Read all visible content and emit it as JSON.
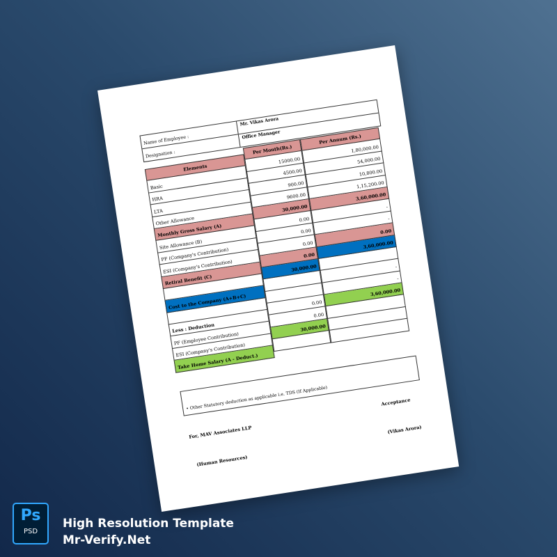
{
  "document": {
    "employee": {
      "name_label": "Name of Employee :",
      "name_value": "Mr. Vikas Arora",
      "designation_label": "Designation :",
      "designation_value": "Office Manager"
    },
    "table": {
      "headers": [
        "Elements",
        "Per Month(Rs.)",
        "Per Annum (Rs.)"
      ],
      "labels": [
        {
          "text": "Basic"
        },
        {
          "text": "HRA"
        },
        {
          "text": "LTA"
        },
        {
          "text": "Other Allowance"
        },
        {
          "text": "Monthly Gross Salary (A)",
          "style": "pink"
        },
        {
          "text": "Site Allowance (B)"
        },
        {
          "text": "PF (Company's Contribution)"
        },
        {
          "text": "ESI (Company's Contribution)"
        },
        {
          "text": "Retiral Benefit (C)",
          "style": "pink"
        },
        {
          "text": "",
          "style": ""
        },
        {
          "text": "Cost to the Company (A+B+C)",
          "style": "blue"
        },
        {
          "text": ""
        },
        {
          "text": "Less : Deduction",
          "style": "bold"
        },
        {
          "text": "PF (Employee Contribution)"
        },
        {
          "text": "ESI (Company's Contribution)"
        },
        {
          "text": "Take Home Salary  (A - Deduct.)",
          "style": "green"
        }
      ],
      "per_month": [
        {
          "text": "15000.00"
        },
        {
          "text": "4500.00"
        },
        {
          "text": "900.00"
        },
        {
          "text": "9600.00"
        },
        {
          "text": "30,000.00",
          "style": "pink"
        },
        {
          "text": "0.00"
        },
        {
          "text": "0.00"
        },
        {
          "text": "0.00"
        },
        {
          "text": "0.00",
          "style": "pink"
        },
        {
          "text": "30,000.00",
          "style": "blue"
        },
        {
          "text": ""
        },
        {
          "text": ""
        },
        {
          "text": "0.00"
        },
        {
          "text": "0.00"
        },
        {
          "text": "30,000.00",
          "style": "green"
        },
        {
          "text": ""
        }
      ],
      "per_annum": [
        {
          "text": "1,80,000.00"
        },
        {
          "text": "54,000.00"
        },
        {
          "text": "10,800.00"
        },
        {
          "text": "1,15,200.00"
        },
        {
          "text": "3,60,000.00",
          "style": "pink"
        },
        {
          "text": "-"
        },
        {
          "text": "-"
        },
        {
          "text": "0.00",
          "style": "pink"
        },
        {
          "text": "3,60,000.00",
          "style": "blue"
        },
        {
          "text": ""
        },
        {
          "text": "-"
        },
        {
          "text": "-"
        },
        {
          "text": "3,60,000.00",
          "style": "green"
        },
        {
          "text": ""
        },
        {
          "text": ""
        },
        {
          "text": ""
        }
      ]
    },
    "note": "• Other Statutory deduction as applicable i.e. TDS (If Applicable)",
    "acceptance": "Acceptance",
    "company": "For, MAV Associates LLP",
    "employee_sign": "(Vikas Arora)",
    "hr_sign": "(Human Resources)"
  },
  "colors": {
    "pink": "#d99694",
    "blue": "#0070c0",
    "green": "#92d050",
    "ps_accent": "#31a8ff"
  },
  "badge": {
    "icon": "photoshop-psd-icon",
    "big": "Ps",
    "small": "PSD"
  },
  "brand": {
    "line1": "High Resolution Template",
    "line2": "Mr-Verify.Net"
  }
}
